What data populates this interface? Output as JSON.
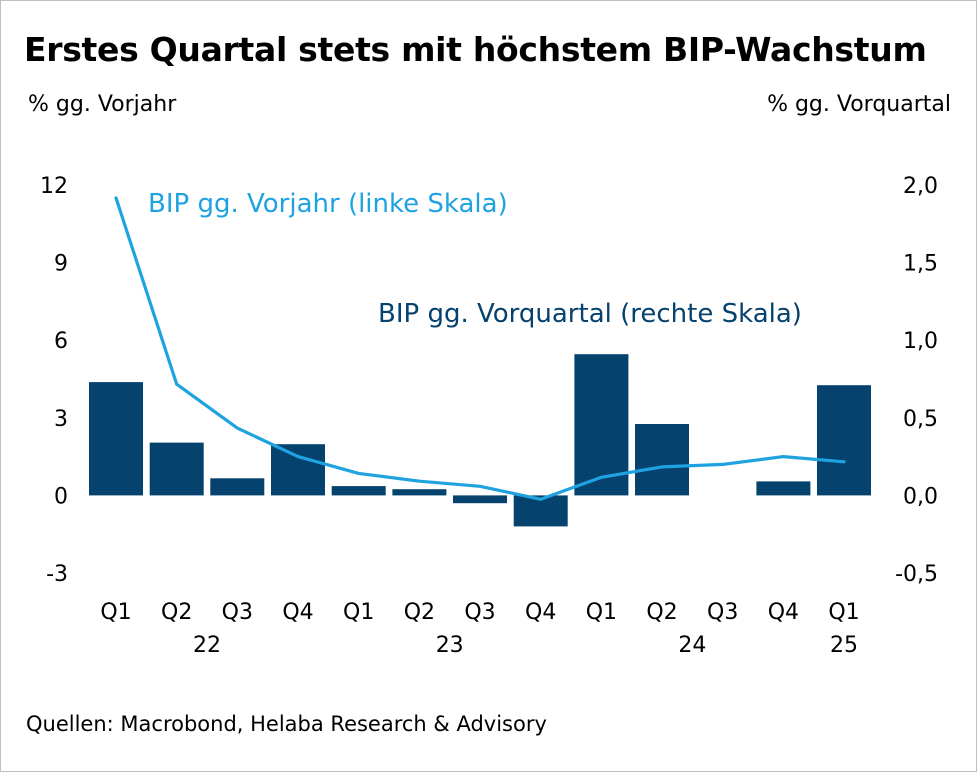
{
  "title": "Erstes Quartal stets mit höchstem BIP-Wachstum",
  "left_unit": "% gg. Vorjahr",
  "right_unit": "% gg. Vorquartal",
  "source": "Quellen: Macrobond, Helaba Research & Advisory",
  "colors": {
    "bars": "#05426d",
    "line": "#1ea3e0",
    "bar_label": "#05426d"
  },
  "chart_data": {
    "type": "bar+line",
    "categories": [
      "Q1",
      "Q2",
      "Q3",
      "Q4",
      "Q1",
      "Q2",
      "Q3",
      "Q4",
      "Q1",
      "Q2",
      "Q3",
      "Q4",
      "Q1"
    ],
    "year_labels": [
      {
        "label": "22",
        "after_index": 1.5
      },
      {
        "label": "23",
        "after_index": 5.5
      },
      {
        "label": "24",
        "after_index": 9.5
      },
      {
        "label": "25",
        "after_index": 12
      }
    ],
    "left_axis": {
      "ticks": [
        "12",
        "9",
        "6",
        "3",
        "0",
        "-3"
      ],
      "values": [
        12,
        9,
        6,
        3,
        0,
        -3
      ],
      "ylim": [
        -3,
        12
      ]
    },
    "right_axis": {
      "ticks": [
        "2,0",
        "1,5",
        "1,0",
        "0,5",
        "0,0",
        "-0,5"
      ],
      "values": [
        2.0,
        1.5,
        1.0,
        0.5,
        0.0,
        -0.5
      ],
      "ylim": [
        -0.5,
        2.0
      ]
    },
    "series": [
      {
        "name": "BIP gg. Vorquartal (rechte Skala)",
        "type": "bar",
        "axis": "right",
        "values": [
          0.73,
          0.34,
          0.11,
          0.33,
          0.06,
          0.04,
          -0.05,
          -0.2,
          0.91,
          0.46,
          0.0,
          0.09,
          0.71
        ]
      },
      {
        "name": "BIP gg. Vorjahr (linke Skala)",
        "type": "line",
        "axis": "left",
        "values": [
          11.5,
          4.3,
          2.6,
          1.5,
          0.85,
          0.55,
          0.35,
          -0.15,
          0.7,
          1.1,
          1.2,
          1.5,
          1.3
        ]
      }
    ],
    "grid": false,
    "legend": "inline labels"
  }
}
